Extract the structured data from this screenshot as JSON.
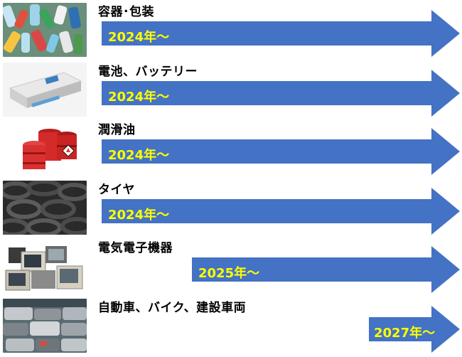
{
  "colors": {
    "arrow": "#4472c4",
    "year_text": "#ffff00",
    "label_text": "#000000"
  },
  "rows": [
    {
      "label": "容器･包装",
      "year": "2024年～",
      "icon": "plastic-bottles-image"
    },
    {
      "label": "電池、バッテリー",
      "year": "2024年～",
      "icon": "battery-pack-image"
    },
    {
      "label": "潤滑油",
      "year": "2024年～",
      "icon": "oil-drums-image"
    },
    {
      "label": "タイヤ",
      "year": "2024年～",
      "icon": "tires-image"
    },
    {
      "label": "電気電子機器",
      "year": "2025年～",
      "icon": "electronics-waste-image"
    },
    {
      "label": "自動車、バイク、建設車両",
      "year": "2027年～",
      "icon": "scrapped-cars-image"
    }
  ]
}
